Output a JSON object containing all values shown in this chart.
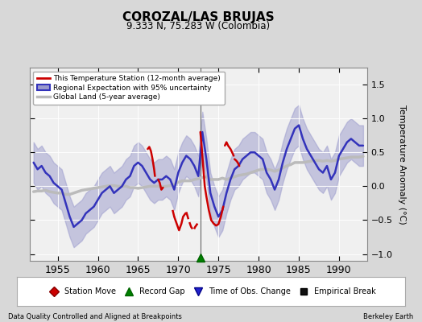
{
  "title": "COROZAL/LAS BRUJAS",
  "subtitle": "9.333 N, 75.283 W (Colombia)",
  "ylabel": "Temperature Anomaly (°C)",
  "xlabel_bottom_left": "Data Quality Controlled and Aligned at Breakpoints",
  "xlabel_bottom_right": "Berkeley Earth",
  "xlim": [
    1951.5,
    1993.5
  ],
  "ylim": [
    -1.1,
    1.75
  ],
  "yticks": [
    -1,
    -0.5,
    0,
    0.5,
    1,
    1.5
  ],
  "xticks": [
    1955,
    1960,
    1965,
    1970,
    1975,
    1980,
    1985,
    1990
  ],
  "background_color": "#d8d8d8",
  "plot_bg_color": "#f0f0f0",
  "regional_color": "#3333bb",
  "regional_fill_color": "#9999cc",
  "regional_fill_alpha": 0.5,
  "station_color": "#cc0000",
  "global_color": "#bbbbbb",
  "global_linewidth": 2.5,
  "regional_linewidth": 1.8,
  "station_linewidth": 1.8,
  "vertical_line_x": 1972.75,
  "marker_gap_x": 1972.75,
  "marker_gap_y": -1.05,
  "regional_years": [
    1952.0,
    1952.5,
    1953.0,
    1953.5,
    1954.0,
    1954.5,
    1955.0,
    1955.5,
    1956.0,
    1956.5,
    1957.0,
    1957.5,
    1958.0,
    1958.5,
    1959.0,
    1959.5,
    1960.0,
    1960.5,
    1961.0,
    1961.5,
    1962.0,
    1962.5,
    1963.0,
    1963.5,
    1964.0,
    1964.5,
    1965.0,
    1965.5,
    1966.0,
    1966.5,
    1967.0,
    1967.5,
    1968.0,
    1968.5,
    1969.0,
    1969.5,
    1970.0,
    1970.5,
    1971.0,
    1971.5,
    1972.0,
    1972.5,
    1973.0,
    1973.5,
    1974.0,
    1974.5,
    1975.0,
    1975.5,
    1976.0,
    1976.5,
    1977.0,
    1977.5,
    1978.0,
    1978.5,
    1979.0,
    1979.5,
    1980.0,
    1980.5,
    1981.0,
    1981.5,
    1982.0,
    1982.5,
    1983.0,
    1983.5,
    1984.0,
    1984.5,
    1985.0,
    1985.5,
    1986.0,
    1986.5,
    1987.0,
    1987.5,
    1988.0,
    1988.5,
    1989.0,
    1989.5,
    1990.0,
    1990.5,
    1991.0,
    1991.5,
    1992.0,
    1992.5,
    1993.0
  ],
  "regional_mean": [
    0.35,
    0.25,
    0.3,
    0.2,
    0.15,
    0.05,
    0.0,
    -0.05,
    -0.25,
    -0.45,
    -0.6,
    -0.55,
    -0.5,
    -0.4,
    -0.35,
    -0.3,
    -0.2,
    -0.1,
    -0.05,
    0.0,
    -0.1,
    -0.05,
    0.0,
    0.1,
    0.15,
    0.3,
    0.35,
    0.3,
    0.2,
    0.1,
    0.05,
    0.1,
    0.1,
    0.15,
    0.1,
    -0.05,
    0.2,
    0.35,
    0.45,
    0.4,
    0.3,
    0.15,
    0.8,
    0.4,
    -0.1,
    -0.3,
    -0.45,
    -0.35,
    -0.1,
    0.1,
    0.25,
    0.3,
    0.4,
    0.45,
    0.5,
    0.5,
    0.45,
    0.4,
    0.2,
    0.1,
    -0.05,
    0.1,
    0.35,
    0.55,
    0.7,
    0.85,
    0.9,
    0.7,
    0.55,
    0.45,
    0.35,
    0.25,
    0.2,
    0.3,
    0.1,
    0.2,
    0.45,
    0.55,
    0.65,
    0.7,
    0.65,
    0.6,
    0.6
  ],
  "regional_upper": [
    0.65,
    0.55,
    0.6,
    0.5,
    0.45,
    0.35,
    0.3,
    0.25,
    0.05,
    -0.15,
    -0.3,
    -0.25,
    -0.2,
    -0.1,
    -0.05,
    0.0,
    0.1,
    0.2,
    0.25,
    0.3,
    0.2,
    0.25,
    0.3,
    0.4,
    0.45,
    0.6,
    0.65,
    0.6,
    0.5,
    0.4,
    0.35,
    0.4,
    0.4,
    0.45,
    0.4,
    0.25,
    0.5,
    0.65,
    0.75,
    0.7,
    0.6,
    0.45,
    1.1,
    0.7,
    0.2,
    0.0,
    -0.15,
    -0.05,
    0.2,
    0.4,
    0.55,
    0.6,
    0.7,
    0.75,
    0.8,
    0.8,
    0.75,
    0.7,
    0.5,
    0.4,
    0.25,
    0.4,
    0.65,
    0.85,
    1.0,
    1.15,
    1.2,
    1.0,
    0.85,
    0.75,
    0.65,
    0.55,
    0.5,
    0.6,
    0.4,
    0.5,
    0.75,
    0.85,
    0.95,
    1.0,
    0.95,
    0.9,
    0.9
  ],
  "regional_lower": [
    0.05,
    -0.05,
    0.0,
    -0.1,
    -0.15,
    -0.25,
    -0.3,
    -0.35,
    -0.55,
    -0.75,
    -0.9,
    -0.85,
    -0.8,
    -0.7,
    -0.65,
    -0.6,
    -0.5,
    -0.4,
    -0.35,
    -0.3,
    -0.4,
    -0.35,
    -0.3,
    -0.2,
    -0.15,
    0.0,
    0.05,
    0.0,
    -0.1,
    -0.2,
    -0.25,
    -0.2,
    -0.2,
    -0.15,
    -0.2,
    -0.35,
    -0.1,
    0.05,
    0.15,
    0.1,
    0.0,
    -0.15,
    0.5,
    0.1,
    -0.4,
    -0.6,
    -0.75,
    -0.65,
    -0.4,
    -0.2,
    -0.05,
    0.0,
    0.1,
    0.15,
    0.2,
    0.2,
    0.15,
    0.1,
    -0.1,
    -0.2,
    -0.35,
    -0.2,
    0.05,
    0.25,
    0.4,
    0.55,
    0.6,
    0.4,
    0.25,
    0.15,
    0.05,
    -0.05,
    -0.1,
    0.0,
    -0.2,
    -0.1,
    0.15,
    0.25,
    0.35,
    0.4,
    0.35,
    0.3,
    0.3
  ],
  "global_years": [
    1952.0,
    1952.5,
    1953.0,
    1953.5,
    1954.0,
    1954.5,
    1955.0,
    1955.5,
    1956.0,
    1956.5,
    1957.0,
    1957.5,
    1958.0,
    1958.5,
    1959.0,
    1959.5,
    1960.0,
    1960.5,
    1961.0,
    1961.5,
    1962.0,
    1962.5,
    1963.0,
    1963.5,
    1964.0,
    1964.5,
    1965.0,
    1965.5,
    1966.0,
    1966.5,
    1967.0,
    1967.5,
    1968.0,
    1968.5,
    1969.0,
    1969.5,
    1970.0,
    1970.5,
    1971.0,
    1971.5,
    1972.0,
    1972.5,
    1973.0,
    1973.5,
    1974.0,
    1974.5,
    1975.0,
    1975.5,
    1976.0,
    1976.5,
    1977.0,
    1977.5,
    1978.0,
    1978.5,
    1979.0,
    1979.5,
    1980.0,
    1980.5,
    1981.0,
    1981.5,
    1982.0,
    1982.5,
    1983.0,
    1983.5,
    1984.0,
    1984.5,
    1985.0,
    1985.5,
    1986.0,
    1986.5,
    1987.0,
    1987.5,
    1988.0,
    1988.5,
    1989.0,
    1989.5,
    1990.0,
    1990.5,
    1991.0,
    1991.5,
    1992.0,
    1992.5,
    1993.0
  ],
  "global_mean": [
    -0.08,
    -0.07,
    -0.07,
    -0.06,
    -0.08,
    -0.09,
    -0.1,
    -0.1,
    -0.12,
    -0.12,
    -0.1,
    -0.08,
    -0.06,
    -0.05,
    -0.04,
    -0.03,
    -0.02,
    -0.01,
    0.0,
    0.01,
    0.01,
    0.0,
    0.0,
    0.0,
    -0.02,
    -0.02,
    -0.03,
    -0.02,
    -0.01,
    0.0,
    0.0,
    0.0,
    -0.01,
    0.0,
    0.01,
    0.03,
    0.06,
    0.08,
    0.08,
    0.08,
    0.1,
    0.11,
    0.13,
    0.14,
    0.1,
    0.1,
    0.1,
    0.12,
    0.1,
    0.12,
    0.14,
    0.16,
    0.17,
    0.18,
    0.2,
    0.22,
    0.24,
    0.25,
    0.25,
    0.24,
    0.22,
    0.24,
    0.27,
    0.3,
    0.32,
    0.35,
    0.35,
    0.35,
    0.36,
    0.37,
    0.38,
    0.38,
    0.37,
    0.38,
    0.37,
    0.38,
    0.4,
    0.41,
    0.42,
    0.43,
    0.43,
    0.43,
    0.44
  ],
  "station_segments": [
    {
      "years": [
        1966.2,
        1966.4,
        1966.6,
        1966.8,
        1967.0,
        1967.1
      ],
      "values": [
        0.55,
        0.58,
        0.52,
        0.4,
        0.25,
        0.15
      ]
    },
    {
      "years": [
        1967.5,
        1967.7,
        1967.9,
        1968.1
      ],
      "values": [
        0.1,
        0.05,
        -0.05,
        -0.02
      ]
    },
    {
      "years": [
        1969.5,
        1969.8,
        1970.1,
        1970.4,
        1970.6,
        1970.9
      ],
      "values": [
        -0.45,
        -0.55,
        -0.65,
        -0.55,
        -0.45,
        -0.4
      ]
    },
    {
      "years": [
        1972.75,
        1972.9,
        1973.1,
        1973.3,
        1973.5,
        1973.8,
        1974.1,
        1974.4,
        1974.7,
        1975.0,
        1975.3,
        1975.6
      ],
      "values": [
        0.8,
        0.6,
        0.3,
        0.0,
        -0.15,
        -0.35,
        -0.5,
        -0.55,
        -0.58,
        -0.56,
        -0.45,
        -0.3
      ]
    },
    {
      "years": [
        1975.8,
        1976.0,
        1976.2,
        1976.5,
        1976.7,
        1976.9
      ],
      "values": [
        0.6,
        0.65,
        0.6,
        0.55,
        0.5,
        0.45
      ]
    },
    {
      "years": [
        1977.0,
        1977.2,
        1977.4,
        1977.6
      ],
      "values": [
        0.4,
        0.38,
        0.35,
        0.3
      ]
    }
  ],
  "station_red_dash_segments": [
    {
      "years": [
        1969.3,
        1969.5
      ],
      "values": [
        -0.35,
        -0.45
      ]
    },
    {
      "years": [
        1971.0,
        1971.3,
        1971.6,
        1971.9,
        1972.1,
        1972.4
      ],
      "values": [
        -0.38,
        -0.5,
        -0.6,
        -0.65,
        -0.6,
        -0.55
      ]
    }
  ]
}
